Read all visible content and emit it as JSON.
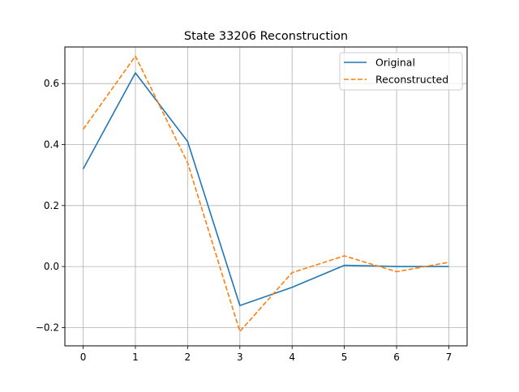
{
  "chart_data": {
    "type": "line",
    "title": "State 33206 Reconstruction",
    "xlabel": "",
    "ylabel": "",
    "x": [
      0,
      1,
      2,
      3,
      4,
      5,
      6,
      7
    ],
    "xlim": [
      -0.35,
      7.35
    ],
    "ylim": [
      -0.26,
      0.72
    ],
    "xticks": [
      0,
      1,
      2,
      3,
      4,
      5,
      6,
      7
    ],
    "yticks": [
      -0.2,
      0.0,
      0.2,
      0.4,
      0.6
    ],
    "ytick_labels": [
      "−0.2",
      "0.0",
      "0.2",
      "0.4",
      "0.6"
    ],
    "grid": true,
    "legend_position": "top-right",
    "series": [
      {
        "name": "Original",
        "color": "#1f77b4",
        "line_style": "solid",
        "values": [
          0.32,
          0.635,
          0.41,
          -0.128,
          -0.068,
          0.004,
          0.0,
          0.0
        ]
      },
      {
        "name": "Reconstructed",
        "color": "#ff7f0e",
        "line_style": "dashed",
        "values": [
          0.45,
          0.69,
          0.34,
          -0.213,
          -0.02,
          0.035,
          -0.017,
          0.014
        ]
      }
    ]
  }
}
